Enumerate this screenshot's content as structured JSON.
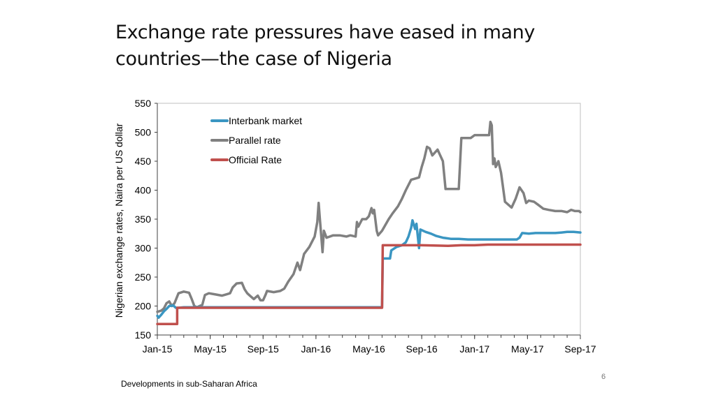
{
  "slide": {
    "title_line1": "Exchange rate pressures have eased in many",
    "title_line2": "countries—the case of Nigeria",
    "footer": "Developments in sub-Saharan Africa",
    "page_number": "6"
  },
  "chart_data": {
    "type": "line",
    "title": "",
    "xlabel": "",
    "ylabel": "Nigerian exchange rates, Naira per US dollar",
    "ylim": [
      150,
      550
    ],
    "yticks": [
      "150",
      "200",
      "250",
      "300",
      "350",
      "400",
      "450",
      "500",
      "550"
    ],
    "xlim": [
      0,
      32
    ],
    "xticks": [
      {
        "label": "Jan-15",
        "x": 0
      },
      {
        "label": "May-15",
        "x": 4
      },
      {
        "label": "Sep-15",
        "x": 8
      },
      {
        "label": "Jan-16",
        "x": 12
      },
      {
        "label": "May-16",
        "x": 16
      },
      {
        "label": "Sep-16",
        "x": 20
      },
      {
        "label": "Jan-17",
        "x": 24
      },
      {
        "label": "May-17",
        "x": 28
      },
      {
        "label": "Sep-17",
        "x": 32
      }
    ],
    "legend_position": "top-center",
    "series": [
      {
        "name": "Parallel rate",
        "color": "#808080",
        "points": [
          [
            0,
            190
          ],
          [
            0.3,
            192
          ],
          [
            0.5,
            196
          ],
          [
            0.7,
            205
          ],
          [
            0.9,
            208
          ],
          [
            1.1,
            200
          ],
          [
            1.3,
            205
          ],
          [
            1.6,
            222
          ],
          [
            2,
            225
          ],
          [
            2.4,
            223
          ],
          [
            2.6,
            212
          ],
          [
            2.8,
            200
          ],
          [
            3,
            198
          ],
          [
            3.2,
            200
          ],
          [
            3.4,
            202
          ],
          [
            3.6,
            219
          ],
          [
            3.9,
            222
          ],
          [
            4.4,
            220
          ],
          [
            4.9,
            218
          ],
          [
            5.2,
            220
          ],
          [
            5.5,
            222
          ],
          [
            5.7,
            232
          ],
          [
            6,
            239
          ],
          [
            6.4,
            240
          ],
          [
            6.6,
            229
          ],
          [
            6.8,
            222
          ],
          [
            7,
            218
          ],
          [
            7.3,
            212
          ],
          [
            7.6,
            218
          ],
          [
            7.8,
            210
          ],
          [
            8,
            210
          ],
          [
            8.2,
            220
          ],
          [
            8.3,
            226
          ],
          [
            8.8,
            224
          ],
          [
            9.3,
            226
          ],
          [
            9.6,
            230
          ],
          [
            9.9,
            242
          ],
          [
            10.3,
            255
          ],
          [
            10.6,
            275
          ],
          [
            10.8,
            262
          ],
          [
            11.1,
            290
          ],
          [
            11.5,
            302
          ],
          [
            11.9,
            320
          ],
          [
            12.1,
            345
          ],
          [
            12.2,
            378
          ],
          [
            12.3,
            350
          ],
          [
            12.5,
            293
          ],
          [
            12.6,
            330
          ],
          [
            12.8,
            318
          ],
          [
            13.3,
            322
          ],
          [
            13.8,
            322
          ],
          [
            14.3,
            320
          ],
          [
            14.6,
            322
          ],
          [
            15,
            320
          ],
          [
            15.1,
            345
          ],
          [
            15.2,
            337
          ],
          [
            15.5,
            350
          ],
          [
            15.8,
            350
          ],
          [
            16,
            355
          ],
          [
            16.2,
            369
          ],
          [
            16.3,
            360
          ],
          [
            16.4,
            366
          ],
          [
            16.6,
            330
          ],
          [
            16.7,
            322
          ],
          [
            17,
            330
          ],
          [
            17.5,
            350
          ],
          [
            17.8,
            360
          ],
          [
            18.2,
            372
          ],
          [
            18.5,
            385
          ],
          [
            18.8,
            400
          ],
          [
            19.2,
            418
          ],
          [
            19.5,
            420
          ],
          [
            19.8,
            422
          ],
          [
            20,
            440
          ],
          [
            20.2,
            455
          ],
          [
            20.4,
            475
          ],
          [
            20.6,
            472
          ],
          [
            20.8,
            460
          ],
          [
            21,
            465
          ],
          [
            21.2,
            470
          ],
          [
            21.4,
            460
          ],
          [
            21.6,
            450
          ],
          [
            21.8,
            402
          ],
          [
            22.4,
            402
          ],
          [
            22.8,
            402
          ],
          [
            23,
            490
          ],
          [
            23.4,
            490
          ],
          [
            23.7,
            490
          ],
          [
            24,
            495
          ],
          [
            24.4,
            495
          ],
          [
            24.8,
            495
          ],
          [
            25.1,
            495
          ],
          [
            25.2,
            518
          ],
          [
            25.3,
            512
          ],
          [
            25.4,
            445
          ],
          [
            25.5,
            455
          ],
          [
            25.6,
            440
          ],
          [
            25.8,
            450
          ],
          [
            26,
            430
          ],
          [
            26.3,
            380
          ],
          [
            26.5,
            376
          ],
          [
            26.8,
            370
          ],
          [
            27.1,
            385
          ],
          [
            27.4,
            405
          ],
          [
            27.7,
            395
          ],
          [
            27.9,
            378
          ],
          [
            28.1,
            382
          ],
          [
            28.5,
            380
          ],
          [
            28.8,
            375
          ],
          [
            29.2,
            368
          ],
          [
            29.6,
            366
          ],
          [
            30.1,
            364
          ],
          [
            30.6,
            364
          ],
          [
            31,
            362
          ],
          [
            31.3,
            366
          ],
          [
            31.6,
            364
          ],
          [
            31.9,
            364
          ],
          [
            32,
            362
          ]
        ]
      },
      {
        "name": "Interbank market",
        "color": "#3a96c2",
        "points": [
          [
            0,
            183
          ],
          [
            0.1,
            180
          ],
          [
            0.3,
            185
          ],
          [
            0.5,
            191
          ],
          [
            0.7,
            195
          ],
          [
            0.9,
            200
          ],
          [
            1.2,
            201
          ],
          [
            1.4,
            197
          ],
          [
            1.6,
            197
          ],
          [
            2,
            198
          ],
          [
            2.5,
            198
          ],
          [
            16,
            198
          ],
          [
            17,
            198
          ],
          [
            17.05,
            282
          ],
          [
            17.6,
            282
          ],
          [
            17.7,
            296
          ],
          [
            18.1,
            302
          ],
          [
            18.5,
            305
          ],
          [
            18.8,
            310
          ],
          [
            19,
            320
          ],
          [
            19.2,
            335
          ],
          [
            19.3,
            348
          ],
          [
            19.5,
            333
          ],
          [
            19.6,
            342
          ],
          [
            19.8,
            300
          ],
          [
            19.9,
            332
          ],
          [
            20.3,
            328
          ],
          [
            20.7,
            325
          ],
          [
            21.1,
            321
          ],
          [
            21.6,
            318
          ],
          [
            22.2,
            316
          ],
          [
            22.8,
            316
          ],
          [
            23.5,
            315
          ],
          [
            24.5,
            315
          ],
          [
            25.5,
            315
          ],
          [
            26.5,
            315
          ],
          [
            27.2,
            315
          ],
          [
            27.4,
            318
          ],
          [
            27.6,
            326
          ],
          [
            28.1,
            325
          ],
          [
            28.6,
            326
          ],
          [
            29.1,
            326
          ],
          [
            29.6,
            326
          ],
          [
            30.1,
            326
          ],
          [
            30.6,
            327
          ],
          [
            31,
            328
          ],
          [
            31.5,
            328
          ],
          [
            32,
            327
          ]
        ]
      },
      {
        "name": "Official Rate",
        "color": "#c0504d",
        "points": [
          [
            0,
            169
          ],
          [
            1.5,
            169
          ],
          [
            1.5,
            197
          ],
          [
            2.5,
            197
          ],
          [
            16,
            197
          ],
          [
            17,
            197
          ],
          [
            17.05,
            305
          ],
          [
            19,
            305
          ],
          [
            20,
            305
          ],
          [
            22,
            304
          ],
          [
            23,
            305
          ],
          [
            24,
            305
          ],
          [
            25,
            306
          ],
          [
            28,
            306
          ],
          [
            32,
            306
          ]
        ]
      }
    ]
  }
}
